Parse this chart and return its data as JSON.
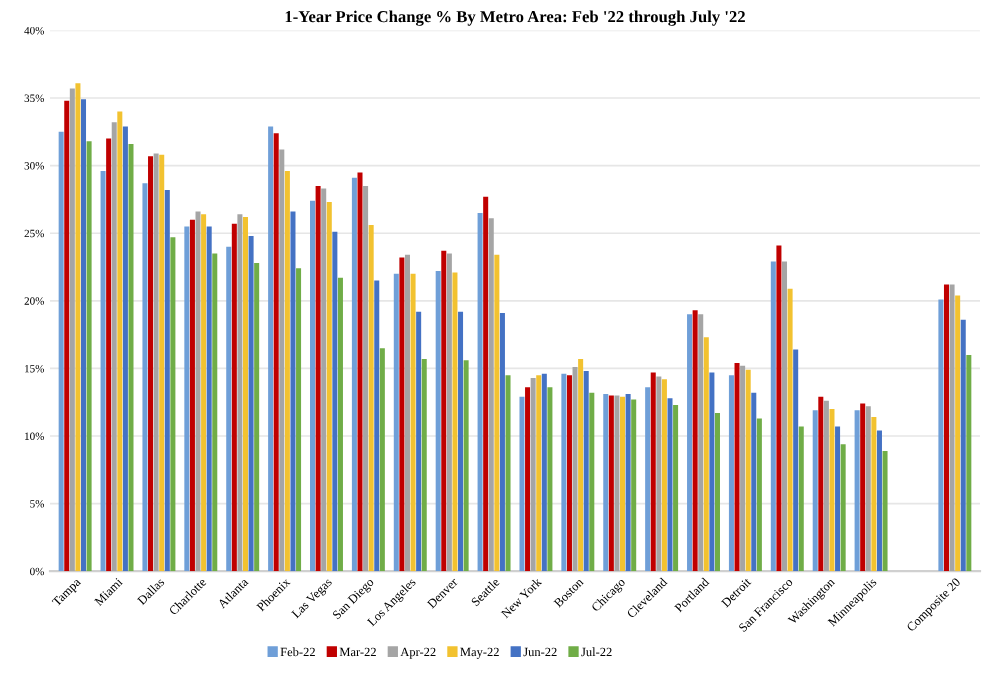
{
  "chart_data": {
    "type": "bar",
    "title": "1-Year Price Change % By Metro Area: Feb '22 through July '22",
    "categories": [
      "Tampa",
      "Miami",
      "Dallas",
      "Charlotte",
      "Atlanta",
      "Phoenix",
      "Las Vegas",
      "San Diego",
      "Los Angeles",
      "Denver",
      "Seattle",
      "New York",
      "Boston",
      "Chicago",
      "Cleveland",
      "Portland",
      "Detroit",
      "San Francisco",
      "Washington",
      "Minneapolis",
      null,
      "Composite 20"
    ],
    "series": [
      {
        "name": "Feb-22",
        "color": "#6f9fd8",
        "values": [
          32.5,
          29.6,
          28.7,
          25.5,
          24.0,
          32.9,
          27.4,
          29.1,
          22.0,
          22.2,
          26.5,
          12.9,
          14.6,
          13.1,
          13.6,
          19.0,
          14.5,
          22.9,
          11.9,
          11.9,
          null,
          20.1
        ]
      },
      {
        "name": "Mar-22",
        "color": "#c00000",
        "values": [
          34.8,
          32.0,
          30.7,
          26.0,
          25.7,
          32.4,
          28.5,
          29.5,
          23.2,
          23.7,
          27.7,
          13.6,
          14.5,
          13.0,
          14.7,
          19.3,
          15.4,
          24.1,
          12.9,
          12.4,
          null,
          21.2
        ]
      },
      {
        "name": "Apr-22",
        "color": "#a5a5a5",
        "values": [
          35.7,
          33.2,
          30.9,
          26.6,
          26.4,
          31.2,
          28.3,
          28.5,
          23.4,
          23.5,
          26.1,
          14.3,
          15.1,
          13.0,
          14.4,
          19.0,
          15.2,
          22.9,
          12.6,
          12.2,
          null,
          21.2
        ]
      },
      {
        "name": "May-22",
        "color": "#f2c230",
        "values": [
          36.1,
          34.0,
          30.8,
          26.4,
          26.2,
          29.6,
          27.3,
          25.6,
          22.0,
          22.1,
          23.4,
          14.5,
          15.7,
          12.9,
          14.2,
          17.3,
          14.9,
          20.9,
          12.0,
          11.4,
          null,
          20.4
        ]
      },
      {
        "name": "Jun-22",
        "color": "#4472c4",
        "values": [
          34.9,
          32.9,
          28.2,
          25.5,
          24.8,
          26.6,
          25.1,
          21.5,
          19.2,
          19.2,
          19.1,
          14.6,
          14.8,
          13.1,
          12.8,
          14.7,
          13.2,
          16.4,
          10.7,
          10.4,
          null,
          18.6
        ]
      },
      {
        "name": "Jul-22",
        "color": "#70ad47",
        "values": [
          31.8,
          31.6,
          24.7,
          23.5,
          22.8,
          22.4,
          21.7,
          16.5,
          15.7,
          15.6,
          14.5,
          13.6,
          13.2,
          12.7,
          12.3,
          11.7,
          11.3,
          10.7,
          9.4,
          8.9,
          null,
          16.0
        ]
      }
    ],
    "ylim": [
      0,
      40
    ],
    "yticks": [
      {
        "value": 0,
        "label": "0%"
      },
      {
        "value": 5,
        "label": "5%"
      },
      {
        "value": 10,
        "label": "10%"
      },
      {
        "value": 15,
        "label": "15%"
      },
      {
        "value": 20,
        "label": "20%"
      },
      {
        "value": 25,
        "label": "25%"
      },
      {
        "value": 30,
        "label": "30%"
      },
      {
        "value": 35,
        "label": "35%"
      },
      {
        "value": 40,
        "label": "40%"
      }
    ],
    "grid": "y",
    "legend": "bottom"
  }
}
